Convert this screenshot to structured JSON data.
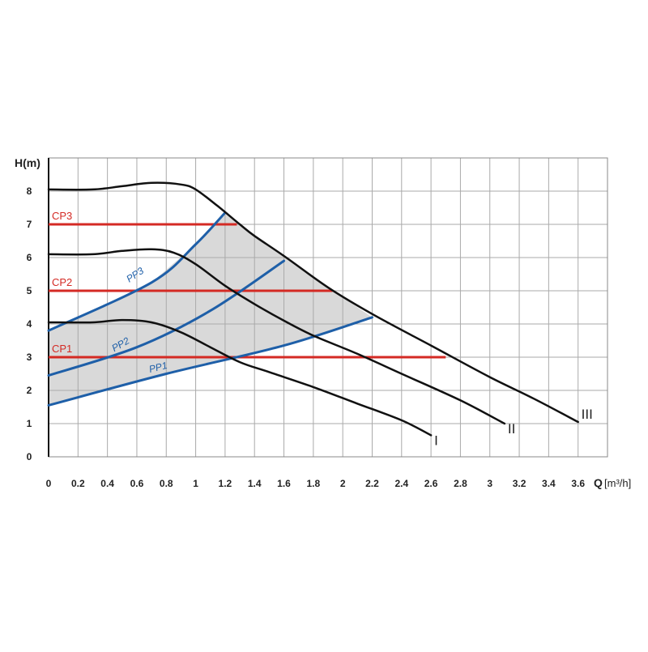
{
  "chart_data": {
    "type": "line",
    "xlabel": "Q",
    "xunit": "[m³/h]",
    "ylabel": "H(m)",
    "xlim": [
      0,
      3.8
    ],
    "ylim": [
      0,
      9
    ],
    "grid": true,
    "x_ticks": [
      "0",
      "0.2",
      "0.4",
      "0.6",
      "0.8",
      "1",
      "1.2",
      "1.4",
      "1.6",
      "1.8",
      "2",
      "2.2",
      "2.4",
      "2.6",
      "2.8",
      "3",
      "3.2",
      "3.4",
      "3.6"
    ],
    "x_tick_values": [
      0,
      0.2,
      0.4,
      0.6,
      0.8,
      1,
      1.2,
      1.4,
      1.6,
      1.8,
      2,
      2.2,
      2.4,
      2.6,
      2.8,
      3,
      3.2,
      3.4,
      3.6
    ],
    "y_ticks": [
      "0",
      "1",
      "2",
      "3",
      "4",
      "5",
      "6",
      "7",
      "8"
    ],
    "y_tick_values": [
      0,
      1,
      2,
      3,
      4,
      5,
      6,
      7,
      8
    ],
    "colors": {
      "speed": "#111111",
      "constant_pressure": "#d42a24",
      "proportional_pressure": "#1e5fa8",
      "region_fill": "#d9d9d9",
      "grid": "#aaaaaa"
    },
    "speed_curves": [
      {
        "name": "I",
        "points": [
          [
            0,
            4.05
          ],
          [
            0.3,
            4.05
          ],
          [
            0.5,
            4.12
          ],
          [
            0.7,
            4.05
          ],
          [
            0.9,
            3.75
          ],
          [
            1.1,
            3.3
          ],
          [
            1.3,
            2.85
          ],
          [
            1.5,
            2.55
          ],
          [
            1.8,
            2.1
          ],
          [
            2.1,
            1.6
          ],
          [
            2.4,
            1.1
          ],
          [
            2.6,
            0.65
          ]
        ]
      },
      {
        "name": "II",
        "points": [
          [
            0,
            6.1
          ],
          [
            0.3,
            6.1
          ],
          [
            0.5,
            6.2
          ],
          [
            0.7,
            6.25
          ],
          [
            0.85,
            6.15
          ],
          [
            1.0,
            5.8
          ],
          [
            1.2,
            5.15
          ],
          [
            1.4,
            4.6
          ],
          [
            1.6,
            4.1
          ],
          [
            1.8,
            3.65
          ],
          [
            2.1,
            3.1
          ],
          [
            2.4,
            2.5
          ],
          [
            2.8,
            1.7
          ],
          [
            3.1,
            1.0
          ]
        ]
      },
      {
        "name": "III",
        "points": [
          [
            0,
            8.05
          ],
          [
            0.3,
            8.05
          ],
          [
            0.5,
            8.15
          ],
          [
            0.7,
            8.25
          ],
          [
            0.9,
            8.2
          ],
          [
            1.0,
            8.05
          ],
          [
            1.15,
            7.55
          ],
          [
            1.3,
            7.0
          ],
          [
            1.4,
            6.65
          ],
          [
            1.6,
            6.05
          ],
          [
            1.9,
            5.1
          ],
          [
            2.2,
            4.3
          ],
          [
            2.6,
            3.35
          ],
          [
            3.0,
            2.4
          ],
          [
            3.3,
            1.75
          ],
          [
            3.6,
            1.05
          ]
        ]
      }
    ],
    "constant_pressure_lines": [
      {
        "name": "CP1",
        "h": 3.0,
        "q_end": 2.7
      },
      {
        "name": "CP2",
        "h": 5.0,
        "q_end": 1.93
      },
      {
        "name": "CP3",
        "h": 7.0,
        "q_end": 1.28
      }
    ],
    "proportional_pressure_lines": [
      {
        "name": "PP1",
        "points": [
          [
            0,
            1.55
          ],
          [
            0.8,
            2.5
          ],
          [
            1.6,
            3.35
          ],
          [
            2.2,
            4.2
          ]
        ]
      },
      {
        "name": "PP2",
        "points": [
          [
            0,
            2.45
          ],
          [
            0.6,
            3.3
          ],
          [
            1.1,
            4.4
          ],
          [
            1.6,
            5.9
          ]
        ]
      },
      {
        "name": "PP3",
        "points": [
          [
            0,
            3.8
          ],
          [
            0.7,
            5.25
          ],
          [
            1.0,
            6.4
          ],
          [
            1.2,
            7.35
          ]
        ]
      }
    ],
    "operating_region": [
      [
        0,
        1.55
      ],
      [
        0.8,
        2.5
      ],
      [
        1.6,
        3.35
      ],
      [
        2.2,
        4.2
      ],
      [
        1.9,
        5.1
      ],
      [
        1.6,
        6.05
      ],
      [
        1.4,
        6.65
      ],
      [
        1.2,
        7.35
      ],
      [
        1.0,
        6.4
      ],
      [
        0.7,
        5.25
      ],
      [
        0,
        3.8
      ],
      [
        0,
        2.45
      ]
    ]
  }
}
